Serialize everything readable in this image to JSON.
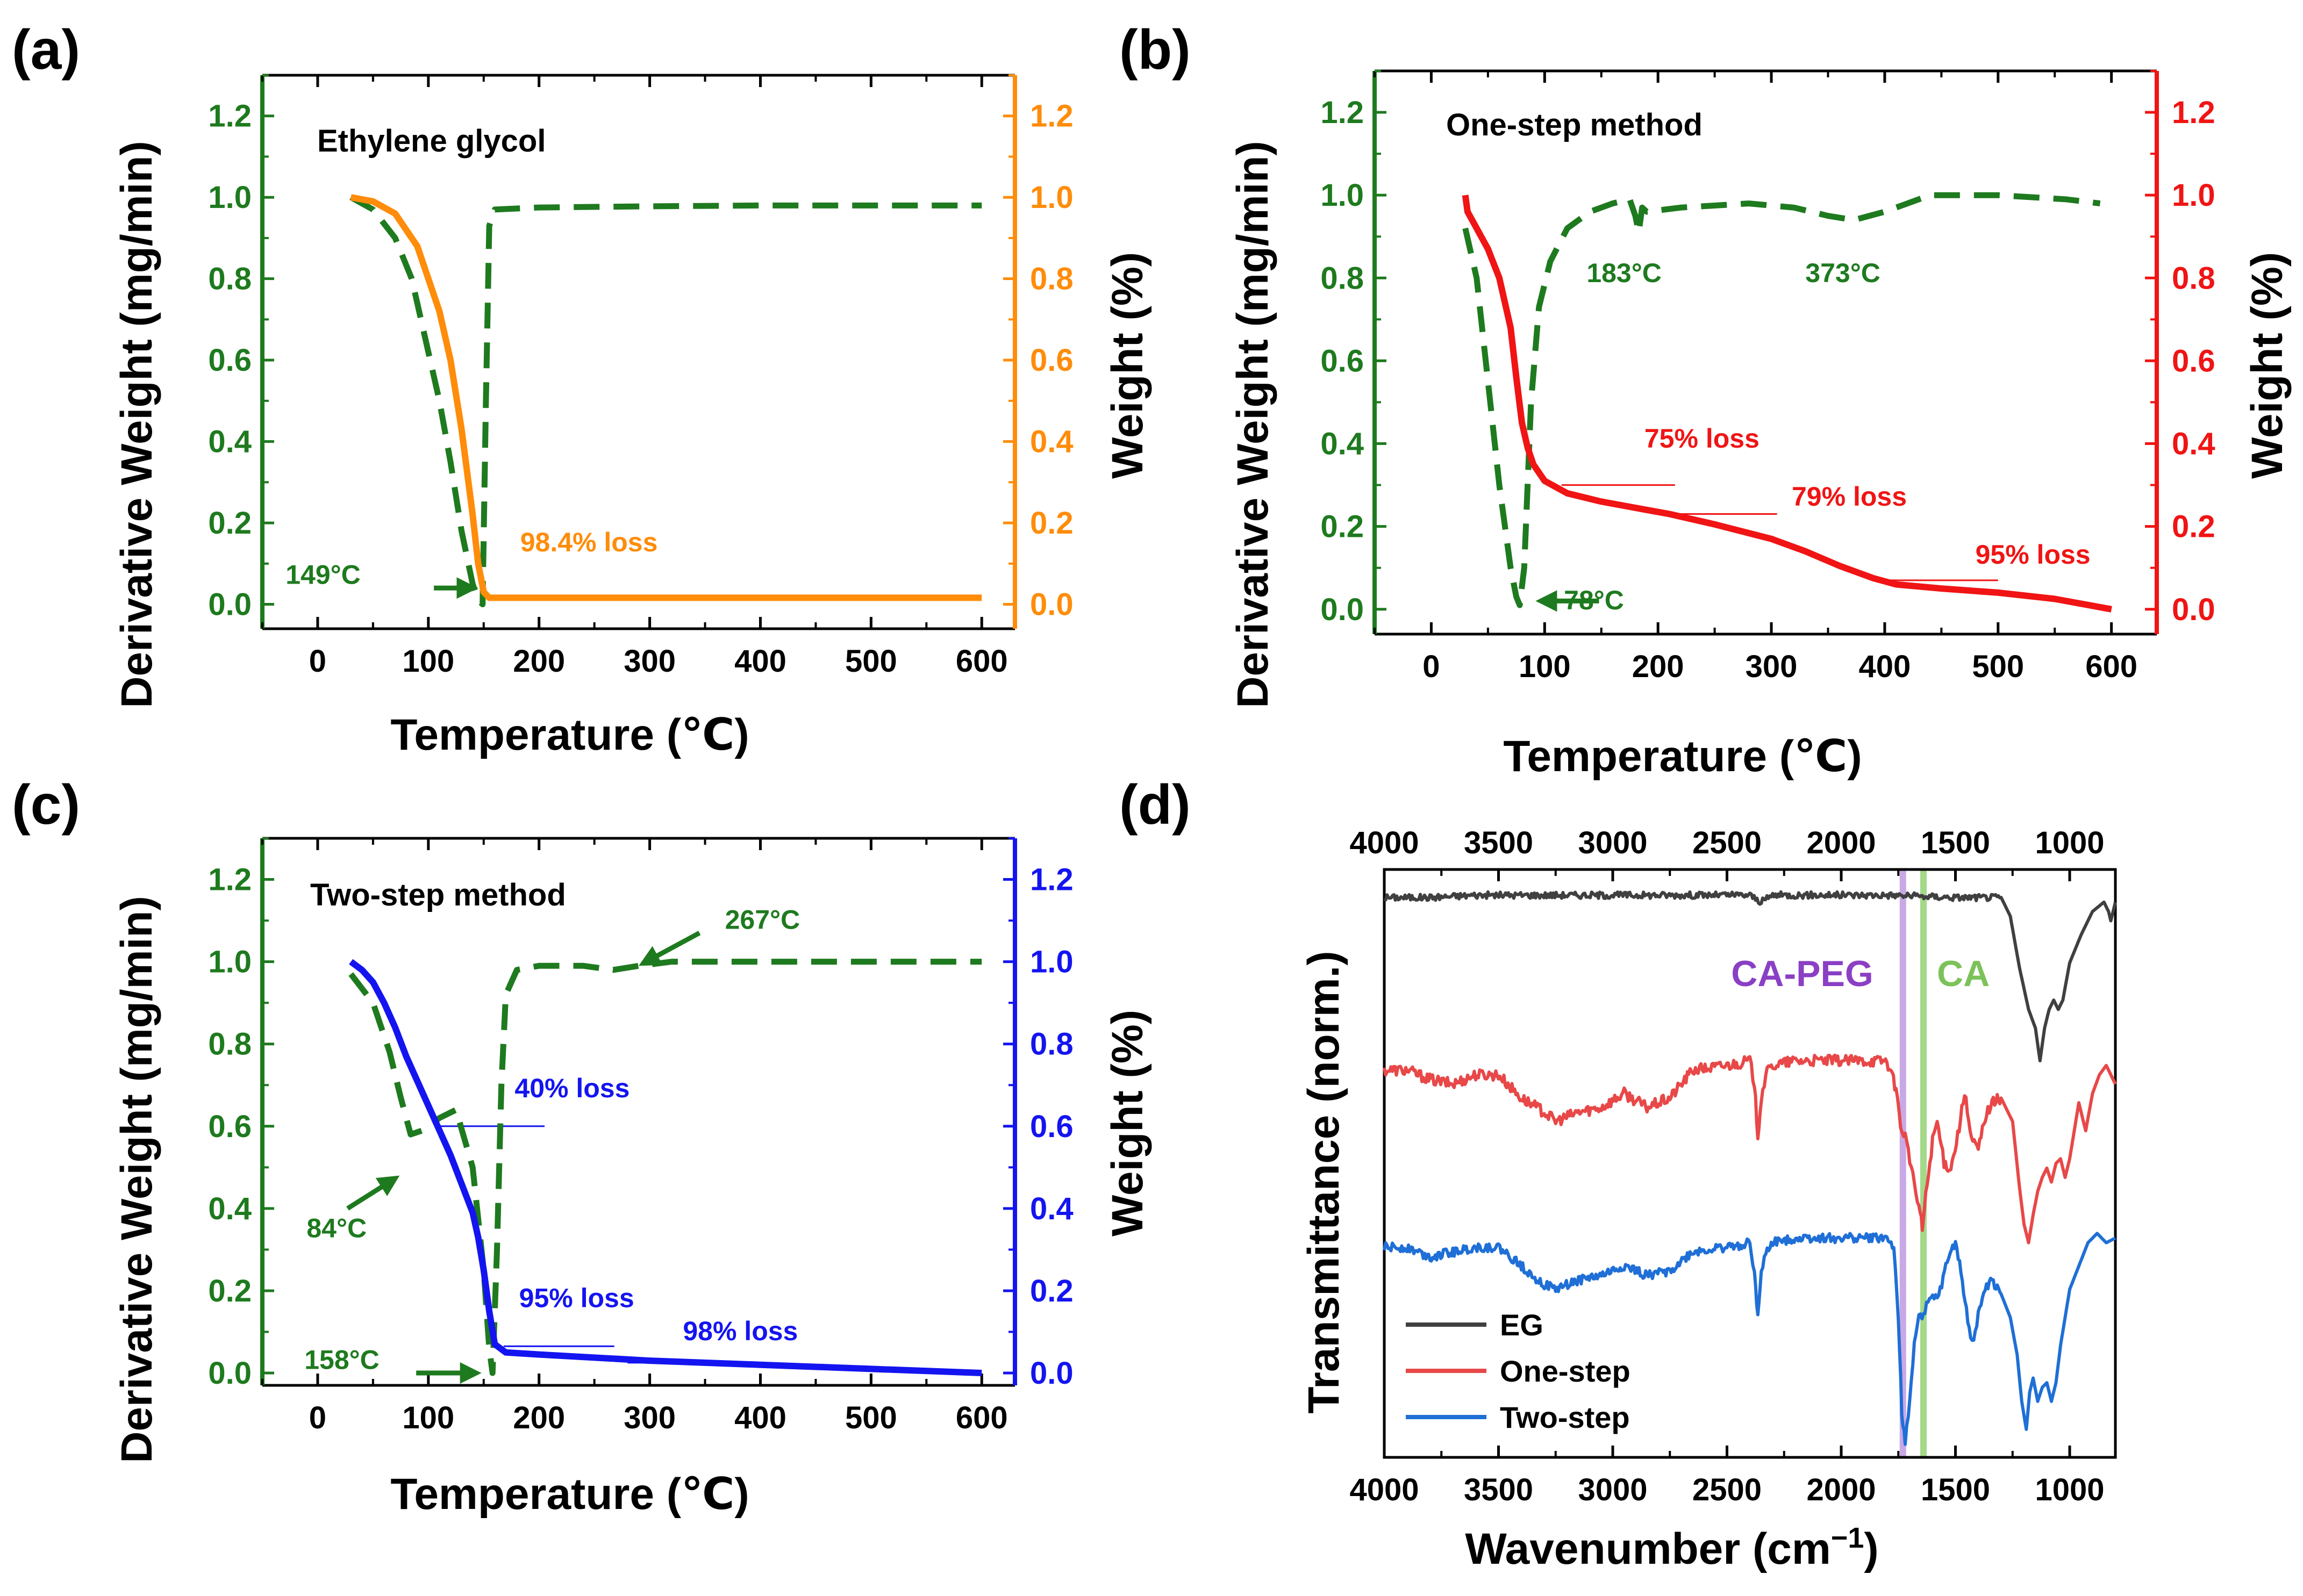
{
  "chart_data": [
    {
      "panel": "(a)",
      "type": "line",
      "title": "Ethylene glycol",
      "xlabel": "Temperature (℃)",
      "ylabel_left": "Derivative Weight (mg/min)",
      "ylabel_right": "Weight  (%)",
      "xlim": [
        -50,
        630
      ],
      "ylim_left": [
        -0.06,
        1.3
      ],
      "ylim_right": [
        -0.06,
        1.3
      ],
      "xticks": [
        0,
        100,
        200,
        300,
        400,
        500,
        600
      ],
      "yticks_left": [
        0.0,
        0.2,
        0.4,
        0.6,
        0.8,
        1.0,
        1.2
      ],
      "yticks_right": [
        0.0,
        0.2,
        0.4,
        0.6,
        0.8,
        1.0,
        1.2
      ],
      "left_color": "#1e7a1e",
      "right_color": "#ff8c0a",
      "series": [
        {
          "name": "Derivative Weight",
          "axis": "left",
          "style": "dashed",
          "color": "#1e7a1e",
          "x": [
            30,
            50,
            70,
            85,
            100,
            110,
            120,
            130,
            140,
            145,
            149,
            152,
            155,
            160,
            200,
            300,
            400,
            500,
            600
          ],
          "y": [
            1.0,
            0.97,
            0.9,
            0.8,
            0.62,
            0.5,
            0.35,
            0.18,
            0.05,
            0.01,
            0.0,
            0.5,
            0.93,
            0.97,
            0.975,
            0.978,
            0.98,
            0.98,
            0.98
          ]
        },
        {
          "name": "Weight",
          "axis": "right",
          "style": "solid",
          "color": "#ff8c0a",
          "x": [
            30,
            50,
            70,
            90,
            110,
            120,
            130,
            140,
            145,
            150,
            155,
            160,
            200,
            300,
            400,
            500,
            600
          ],
          "y": [
            1.0,
            0.99,
            0.96,
            0.88,
            0.72,
            0.6,
            0.43,
            0.22,
            0.1,
            0.03,
            0.016,
            0.016,
            0.016,
            0.016,
            0.016,
            0.016,
            0.016
          ]
        }
      ],
      "reference_lines": [
        {
          "axis": "right",
          "x": [
            150,
            245
          ],
          "y": 0.02
        }
      ],
      "annotations": [
        {
          "text": "149°C",
          "x": -29,
          "y": 0.05,
          "color": "#1e7a1e",
          "arrow_to": [
            145,
            0.04
          ],
          "arrow_from": [
            105,
            0.04
          ]
        },
        {
          "text": "98.4% loss",
          "x": 183,
          "y": 0.13,
          "color": "#ff8c0a"
        }
      ]
    },
    {
      "panel": "(b)",
      "type": "line",
      "title": "One-step method",
      "xlabel": "Temperature (℃)",
      "ylabel_left": "Derivative Weight (mg/min)",
      "ylabel_right": "Weight  (%)",
      "xlim": [
        -50,
        640
      ],
      "ylim_left": [
        -0.06,
        1.3
      ],
      "ylim_right": [
        -0.06,
        1.3
      ],
      "xticks": [
        0,
        100,
        200,
        300,
        400,
        500,
        600
      ],
      "yticks_left": [
        0.0,
        0.2,
        0.4,
        0.6,
        0.8,
        1.0,
        1.2
      ],
      "yticks_right": [
        0.0,
        0.2,
        0.4,
        0.6,
        0.8,
        1.0,
        1.2
      ],
      "left_color": "#1e7a1e",
      "right_color": "#f01414",
      "series": [
        {
          "name": "Derivative Weight",
          "axis": "left",
          "style": "dashed",
          "color": "#1e7a1e",
          "x": [
            30,
            40,
            50,
            60,
            70,
            75,
            78,
            82,
            88,
            95,
            105,
            120,
            140,
            160,
            175,
            180,
            183,
            186,
            190,
            220,
            280,
            320,
            350,
            373,
            400,
            440,
            500,
            560,
            590
          ],
          "y": [
            0.92,
            0.8,
            0.55,
            0.3,
            0.1,
            0.03,
            0.01,
            0.1,
            0.5,
            0.73,
            0.84,
            0.92,
            0.96,
            0.98,
            0.99,
            0.95,
            0.91,
            0.97,
            0.96,
            0.97,
            0.98,
            0.97,
            0.95,
            0.94,
            0.96,
            1.0,
            1.0,
            0.99,
            0.98
          ]
        },
        {
          "name": "Weight",
          "axis": "right",
          "style": "solid",
          "color": "#f01414",
          "x": [
            30,
            32,
            40,
            50,
            60,
            70,
            75,
            80,
            85,
            90,
            100,
            120,
            150,
            180,
            210,
            250,
            300,
            330,
            360,
            390,
            410,
            450,
            500,
            550,
            600
          ],
          "y": [
            1.0,
            0.96,
            0.92,
            0.87,
            0.8,
            0.68,
            0.56,
            0.45,
            0.39,
            0.35,
            0.31,
            0.28,
            0.26,
            0.245,
            0.23,
            0.205,
            0.17,
            0.14,
            0.105,
            0.075,
            0.06,
            0.05,
            0.04,
            0.025,
            0.0
          ]
        }
      ],
      "reference_lines": [
        {
          "axis": "right",
          "x": [
            115,
            215
          ],
          "y": 0.3
        },
        {
          "axis": "right",
          "x": [
            205,
            305
          ],
          "y": 0.23
        },
        {
          "axis": "right",
          "x": [
            400,
            500
          ],
          "y": 0.07
        }
      ],
      "annotations": [
        {
          "text": "183°C",
          "x": 137,
          "y": 0.79,
          "color": "#1e7a1e"
        },
        {
          "text": "373°C",
          "x": 330,
          "y": 0.79,
          "color": "#1e7a1e"
        },
        {
          "text": "75% loss",
          "x": 188,
          "y": 0.39,
          "color": "#f01414"
        },
        {
          "text": "79% loss",
          "x": 318,
          "y": 0.25,
          "color": "#f01414"
        },
        {
          "text": "95% loss",
          "x": 480,
          "y": 0.11,
          "color": "#f01414"
        },
        {
          "text": "78°C",
          "x": 117,
          "y": 0.0,
          "color": "#1e7a1e",
          "arrow_to": [
            92,
            0.02
          ],
          "arrow_from": [
            148,
            0.02
          ]
        }
      ]
    },
    {
      "panel": "(c)",
      "type": "line",
      "title": "Two-step method",
      "xlabel": "Temperature (℃)",
      "ylabel_left": "Derivative Weight (mg/min)",
      "ylabel_right": "Weight  (%)",
      "xlim": [
        -50,
        630
      ],
      "ylim_left": [
        -0.03,
        1.3
      ],
      "ylim_right": [
        -0.03,
        1.3
      ],
      "xticks": [
        0,
        100,
        200,
        300,
        400,
        500,
        600
      ],
      "yticks_left": [
        0.0,
        0.2,
        0.4,
        0.6,
        0.8,
        1.0,
        1.2
      ],
      "yticks_right": [
        0.0,
        0.2,
        0.4,
        0.6,
        0.8,
        1.0,
        1.2
      ],
      "left_color": "#1e7a1e",
      "right_color": "#1414f0",
      "series": [
        {
          "name": "Derivative Weight",
          "axis": "left",
          "style": "dashed",
          "color": "#1e7a1e",
          "x": [
            30,
            50,
            65,
            75,
            84,
            95,
            110,
            125,
            140,
            150,
            155,
            158,
            162,
            166,
            170,
            180,
            200,
            240,
            267,
            290,
            320,
            400,
            500,
            600
          ],
          "y": [
            0.97,
            0.9,
            0.78,
            0.67,
            0.58,
            0.59,
            0.62,
            0.64,
            0.5,
            0.25,
            0.06,
            0.0,
            0.3,
            0.7,
            0.92,
            0.98,
            0.99,
            0.99,
            0.98,
            0.99,
            1.0,
            1.0,
            1.0,
            1.0
          ]
        },
        {
          "name": "Weight",
          "axis": "right",
          "style": "solid",
          "color": "#1414f0",
          "x": [
            30,
            40,
            50,
            60,
            70,
            80,
            90,
            100,
            110,
            120,
            130,
            140,
            145,
            150,
            155,
            160,
            170,
            200,
            300,
            400,
            500,
            600
          ],
          "y": [
            1.0,
            0.98,
            0.95,
            0.9,
            0.84,
            0.77,
            0.71,
            0.65,
            0.59,
            0.53,
            0.46,
            0.39,
            0.33,
            0.25,
            0.15,
            0.07,
            0.05,
            0.045,
            0.03,
            0.02,
            0.01,
            0.0
          ]
        }
      ],
      "reference_lines": [
        {
          "axis": "right",
          "x": [
            110,
            205
          ],
          "y": 0.6
        },
        {
          "axis": "right",
          "x": [
            168,
            268
          ],
          "y": 0.065
        },
        {
          "axis": "right",
          "x": [
            280,
            380
          ],
          "y": 0.025
        }
      ],
      "annotations": [
        {
          "text": "267°C",
          "x": 368,
          "y": 1.08,
          "color": "#1e7a1e",
          "arrow_to": [
            290,
            0.99
          ],
          "arrow_from": [
            345,
            1.07
          ]
        },
        {
          "text": "40% loss",
          "x": 178,
          "y": 0.67,
          "color": "#1414f0"
        },
        {
          "text": "84°C",
          "x": -10,
          "y": 0.33,
          "color": "#1e7a1e",
          "arrow_to": [
            74,
            0.48
          ],
          "arrow_from": [
            27,
            0.4
          ]
        },
        {
          "text": "95% loss",
          "x": 182,
          "y": 0.16,
          "color": "#1414f0"
        },
        {
          "text": "98% loss",
          "x": 330,
          "y": 0.08,
          "color": "#1414f0"
        },
        {
          "text": "158°C",
          "x": -12,
          "y": 0.01,
          "color": "#1e7a1e",
          "arrow_to": [
            148,
            0.0
          ],
          "arrow_from": [
            89,
            0.0
          ]
        }
      ]
    },
    {
      "panel": "(d)",
      "type": "line",
      "xlabel": "Wavenumber (cm",
      "xlabel_superscript": "−1",
      "xlabel_close": ")",
      "ylabel": "Transmittance (norm.)",
      "xlim": [
        4000,
        800
      ],
      "ylim": [
        0,
        12.6
      ],
      "xticks": [
        4000,
        3500,
        3000,
        2500,
        2000,
        1500,
        1000
      ],
      "band_markers": [
        {
          "label": "CA-PEG",
          "x": 1730,
          "color": "#8a3fc4",
          "line_color": "#c9a8e6"
        },
        {
          "label": "CA",
          "x": 1640,
          "color": "#7cc25a",
          "line_color": "#a4d98a"
        }
      ],
      "series": [
        {
          "name": "EG",
          "color": "#404040",
          "noise": 0.07,
          "x": [
            4000,
            3800,
            3600,
            3200,
            2800,
            2400,
            2350,
            2300,
            2000,
            1800,
            1500,
            1300,
            1260,
            1220,
            1180,
            1150,
            1130,
            1110,
            1090,
            1070,
            1050,
            1030,
            1000,
            950,
            900,
            850,
            830,
            820,
            800
          ],
          "y": [
            12.0,
            12.0,
            12.05,
            12.05,
            12.05,
            12.05,
            11.9,
            12.05,
            12.05,
            12.05,
            12.0,
            12.0,
            11.6,
            10.5,
            9.6,
            9.2,
            8.5,
            9.2,
            9.6,
            9.8,
            9.6,
            9.8,
            10.6,
            11.2,
            11.7,
            11.9,
            11.7,
            11.5,
            11.9
          ]
        },
        {
          "name": "One-step",
          "color": "#e84848",
          "noise": 0.12,
          "x": [
            4000,
            3900,
            3800,
            3700,
            3600,
            3500,
            3400,
            3300,
            3250,
            3150,
            3050,
            2950,
            2850,
            2750,
            2650,
            2500,
            2400,
            2380,
            2365,
            2350,
            2330,
            2300,
            2200,
            1950,
            1800,
            1760,
            1740,
            1720,
            1700,
            1680,
            1660,
            1645,
            1630,
            1600,
            1580,
            1550,
            1520,
            1490,
            1460,
            1430,
            1400,
            1370,
            1340,
            1300,
            1250,
            1220,
            1200,
            1180,
            1160,
            1140,
            1120,
            1100,
            1080,
            1060,
            1040,
            1020,
            1000,
            960,
            930,
            900,
            870,
            840,
            800
          ],
          "y": [
            8.3,
            8.3,
            8.1,
            8.0,
            8.2,
            8.2,
            7.7,
            7.4,
            7.2,
            7.4,
            7.5,
            7.8,
            7.5,
            7.7,
            8.3,
            8.4,
            8.5,
            8.0,
            6.9,
            7.7,
            8.2,
            8.4,
            8.5,
            8.5,
            8.5,
            7.9,
            7.1,
            6.9,
            6.4,
            5.8,
            5.4,
            4.9,
            5.6,
            6.8,
            7.2,
            6.3,
            6.2,
            6.9,
            7.8,
            6.8,
            6.6,
            7.3,
            7.6,
            7.7,
            7.2,
            5.8,
            5.0,
            4.6,
            5.2,
            5.7,
            6.0,
            6.2,
            5.9,
            6.3,
            6.4,
            6.0,
            6.4,
            7.6,
            7.0,
            7.8,
            8.2,
            8.4,
            8.0
          ]
        },
        {
          "name": "Two-step",
          "color": "#1f6fd6",
          "noise": 0.1,
          "x": [
            4000,
            3900,
            3800,
            3700,
            3600,
            3500,
            3400,
            3300,
            3250,
            3150,
            3050,
            2950,
            2850,
            2750,
            2650,
            2500,
            2400,
            2380,
            2365,
            2350,
            2330,
            2300,
            2200,
            1950,
            1800,
            1770,
            1750,
            1735,
            1720,
            1700,
            1680,
            1660,
            1640,
            1620,
            1600,
            1580,
            1560,
            1530,
            1500,
            1470,
            1440,
            1420,
            1400,
            1370,
            1340,
            1300,
            1260,
            1230,
            1210,
            1190,
            1175,
            1160,
            1140,
            1120,
            1100,
            1080,
            1060,
            1040,
            1000,
            960,
            920,
            880,
            840,
            800
          ],
          "y": [
            4.5,
            4.5,
            4.3,
            4.4,
            4.5,
            4.5,
            4.1,
            3.7,
            3.6,
            3.8,
            3.9,
            4.1,
            3.9,
            4.0,
            4.4,
            4.5,
            4.6,
            4.0,
            3.0,
            3.9,
            4.4,
            4.6,
            4.7,
            4.7,
            4.7,
            4.5,
            3.0,
            1.0,
            0.3,
            1.2,
            2.5,
            3.0,
            3.1,
            3.3,
            3.4,
            3.4,
            3.7,
            4.3,
            4.6,
            3.8,
            2.7,
            2.5,
            3.1,
            3.6,
            3.8,
            3.5,
            3.0,
            2.2,
            1.2,
            0.6,
            1.4,
            1.7,
            1.2,
            1.5,
            1.6,
            1.2,
            1.6,
            2.4,
            3.6,
            4.1,
            4.6,
            4.8,
            4.6,
            4.7
          ]
        }
      ]
    }
  ]
}
